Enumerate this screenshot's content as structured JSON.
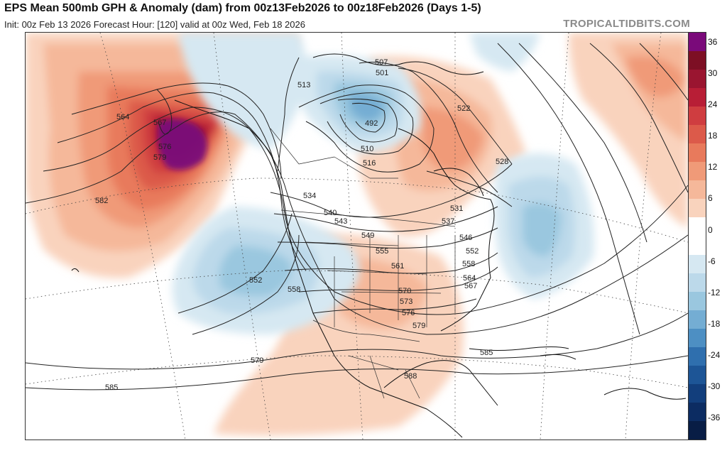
{
  "header": {
    "title": "EPS Mean 500mb GPH & Anomaly (dam) from 00z13Feb2026 to 00z18Feb2026 (Days 1-5)",
    "subtitle": "Init: 00z Feb 13 2026   Forecast Hour: [120]   valid at 00z Wed, Feb 18 2026",
    "credit": "TROPICALTIDBITS.COM"
  },
  "colorbar": {
    "ticks": [
      "36",
      "30",
      "24",
      "18",
      "12",
      "6",
      "0",
      "-6",
      "-12",
      "-18",
      "-24",
      "-30",
      "-36"
    ],
    "colors": [
      "#7a0a7a",
      "#7d0f24",
      "#9a1530",
      "#b81e36",
      "#cf3d40",
      "#dc5a4a",
      "#e87a5c",
      "#f09a78",
      "#f5b89a",
      "#f9d3bd",
      "#ffffff",
      "#ffffff",
      "#d6e8f2",
      "#bcd9ea",
      "#9ac7df",
      "#74add3",
      "#4d8fc3",
      "#2f6fae",
      "#1d5596",
      "#123e7c",
      "#0c2c62",
      "#081d45"
    ]
  },
  "map": {
    "contour_labels": [
      {
        "id": "564",
        "text": "564"
      },
      {
        "id": "567",
        "text": "567"
      },
      {
        "id": "576",
        "text": "576"
      },
      {
        "id": "579a",
        "text": "579"
      },
      {
        "id": "582",
        "text": "582"
      },
      {
        "id": "534",
        "text": "534"
      },
      {
        "id": "540",
        "text": "540"
      },
      {
        "id": "543",
        "text": "543"
      },
      {
        "id": "549",
        "text": "549"
      },
      {
        "id": "555",
        "text": "555"
      },
      {
        "id": "561",
        "text": "561"
      },
      {
        "id": "552",
        "text": "552"
      },
      {
        "id": "558a",
        "text": "558"
      },
      {
        "id": "570",
        "text": "570"
      },
      {
        "id": "573",
        "text": "573"
      },
      {
        "id": "576b",
        "text": "576"
      },
      {
        "id": "579b",
        "text": "579"
      },
      {
        "id": "585a",
        "text": "585"
      },
      {
        "id": "585b",
        "text": "585"
      },
      {
        "id": "588",
        "text": "588"
      },
      {
        "id": "579c",
        "text": "579"
      },
      {
        "id": "513",
        "text": "513"
      },
      {
        "id": "507",
        "text": "507"
      },
      {
        "id": "501",
        "text": "501"
      },
      {
        "id": "522",
        "text": "522"
      },
      {
        "id": "528",
        "text": "528"
      },
      {
        "id": "531",
        "text": "531"
      },
      {
        "id": "537",
        "text": "537"
      },
      {
        "id": "546",
        "text": "546"
      },
      {
        "id": "552b",
        "text": "552"
      },
      {
        "id": "558b",
        "text": "558"
      },
      {
        "id": "564b",
        "text": "564"
      },
      {
        "id": "567b",
        "text": "567"
      },
      {
        "id": "510",
        "text": "510"
      },
      {
        "id": "516",
        "text": "516"
      },
      {
        "id": "492",
        "text": "492"
      }
    ]
  }
}
